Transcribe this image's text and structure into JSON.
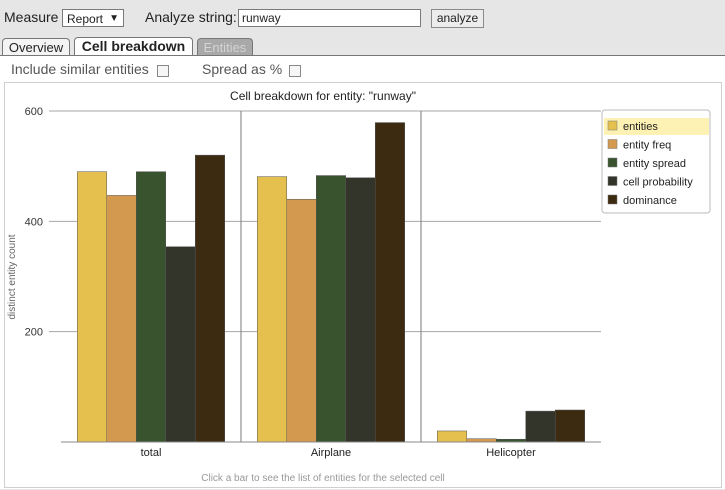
{
  "toolbar": {
    "measure_label": "Measure",
    "measure_value": "Report",
    "analyze_label": "Analyze string:",
    "analyze_value": "runway",
    "analyze_button": "analyze"
  },
  "tabs": [
    {
      "label": "Overview"
    },
    {
      "label": "Cell breakdown"
    },
    {
      "label": "Entities"
    }
  ],
  "options": {
    "include_similar": "Include similar entities",
    "spread_pct": "Spread as %"
  },
  "footer_hint": "Click a bar to see the list of entities for the selected cell",
  "colors": {
    "entities": "#e6c04f",
    "entity freq": "#d39a4f",
    "entity spread": "#39532f",
    "cell probability": "#34352a",
    "dominance": "#3c2b11"
  },
  "chart_data": {
    "type": "bar",
    "title": "Cell breakdown for entity: \"runway\"",
    "ylabel": "distinct entity count",
    "xlabel": "",
    "ylim": [
      0,
      600
    ],
    "yticks": [
      200,
      400,
      600
    ],
    "categories": [
      "total",
      "Airplane",
      "Helicopter"
    ],
    "series": [
      {
        "name": "entities",
        "values": [
          490,
          481,
          20
        ]
      },
      {
        "name": "entity freq",
        "values": [
          447,
          440,
          6
        ]
      },
      {
        "name": "entity spread",
        "values": [
          490,
          483,
          5
        ]
      },
      {
        "name": "cell probability",
        "values": [
          354,
          479,
          56
        ]
      },
      {
        "name": "dominance",
        "values": [
          520,
          579,
          58
        ]
      }
    ],
    "legend_position": "top-right",
    "grid": true
  }
}
